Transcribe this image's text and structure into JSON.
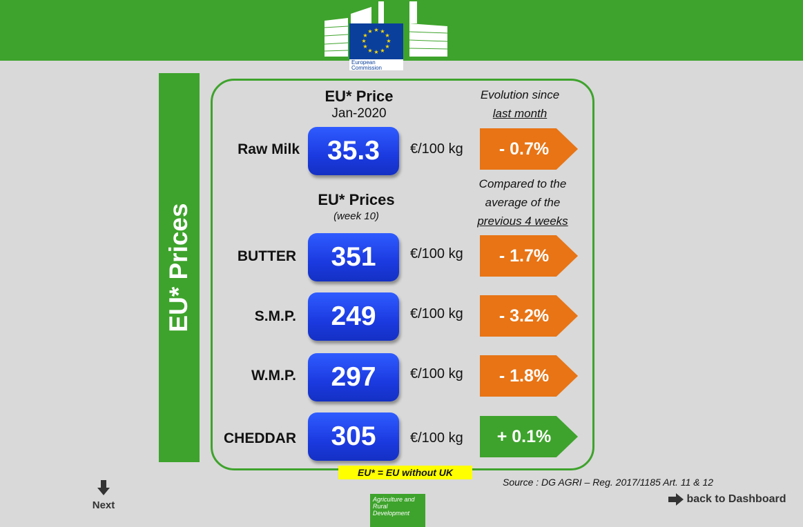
{
  "logo": {
    "text": "European Commission",
    "colors": {
      "flag": "#0a3f9c",
      "stars": "#ffdd00"
    }
  },
  "banner": {
    "title": "EU* Prices"
  },
  "monthly": {
    "title": "EU* Price",
    "period": "Jan-2020",
    "evolution_line1": "Evolution since",
    "evolution_line2": "last month"
  },
  "weekly": {
    "title": "EU* Prices",
    "period": "(week 10)",
    "compare_line1": "Compared to the",
    "compare_line2": "average of the",
    "compare_line3": "previous 4 weeks"
  },
  "products": [
    {
      "name": "Raw Milk",
      "price": "35.3",
      "unit": "€/100 kg",
      "change": "- 0.7%",
      "trend": "down"
    },
    {
      "name": "BUTTER",
      "price": "351",
      "unit": "€/100 kg",
      "change": "- 1.7%",
      "trend": "down"
    },
    {
      "name": "S.M.P.",
      "price": "249",
      "unit": "€/100 kg",
      "change": "- 3.2%",
      "trend": "down"
    },
    {
      "name": "W.M.P.",
      "price": "297",
      "unit": "€/100 kg",
      "change": "- 1.8%",
      "trend": "down"
    },
    {
      "name": "CHEDDAR",
      "price": "305",
      "unit": "€/100 kg",
      "change": "+ 0.1%",
      "trend": "up"
    }
  ],
  "footnote": "EU* = EU without UK",
  "source": "Source : DG AGRI – Reg. 2017/1185 Art. 11 & 12",
  "nav": {
    "next_label": "Next",
    "next_icon": "arrow-down-icon",
    "back_label": "back to Dashboard",
    "back_icon": "arrow-right-icon"
  },
  "agri_logo": "Agriculture and Rural Development",
  "colors": {
    "brand_green": "#3ea32c",
    "down_orange": "#e87415",
    "price_blue": "#1b3ae0",
    "footnote_yellow": "#ffff00"
  }
}
